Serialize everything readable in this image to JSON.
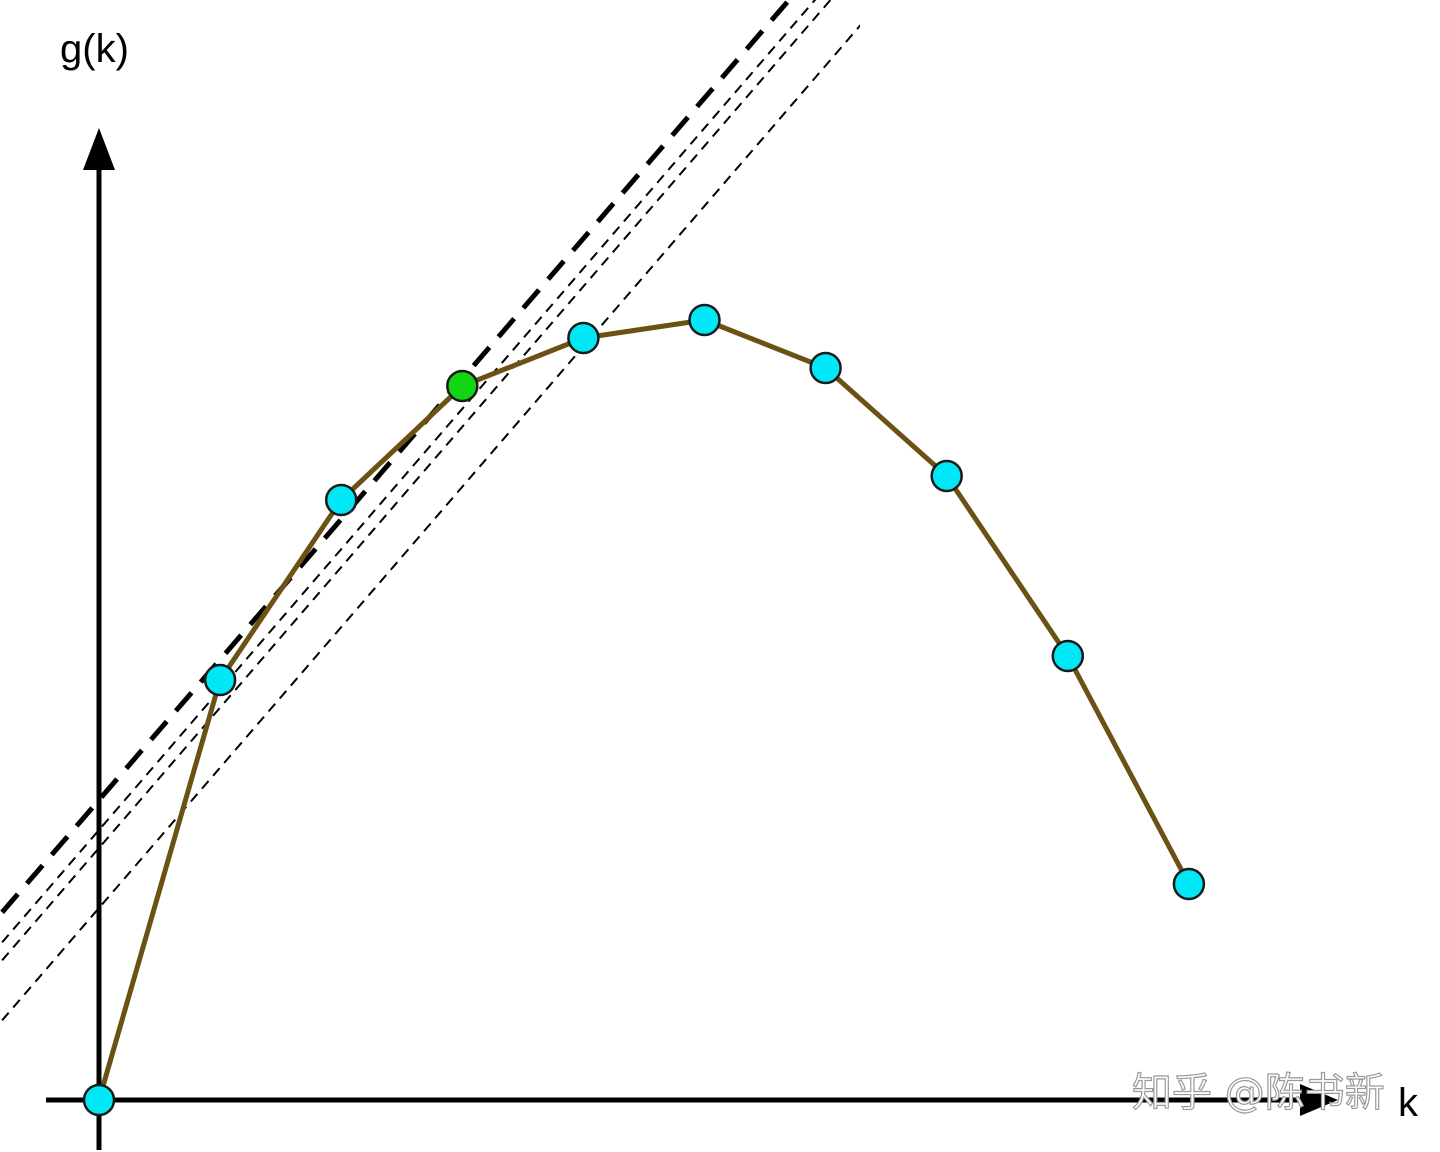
{
  "chart_data": {
    "type": "line",
    "xlabel": "k",
    "ylabel": "g(k)",
    "xlim": [
      -0.8,
      10.8
    ],
    "ylim": [
      -0.4,
      8.4
    ],
    "grid": false,
    "legend": "none",
    "series": [
      {
        "x": [
          0,
          1,
          2,
          3,
          4,
          5,
          6,
          7,
          8,
          9
        ],
        "values": [
          0,
          3.5,
          5.0,
          5.95,
          6.35,
          6.5,
          6.1,
          5.2,
          3.7,
          1.8
        ],
        "color": "#6b5214",
        "marker_color": "#00e8f5",
        "highlight_index": 3,
        "highlight_color": "#11d611"
      }
    ],
    "reference_lines": [
      {
        "slope": 1.17,
        "intercept": 2.5,
        "style": "dashed-thick",
        "color": "#000000"
      },
      {
        "slope": 1.17,
        "intercept": 2.25,
        "style": "dashed-thin",
        "color": "#000000"
      },
      {
        "slope": 1.17,
        "intercept": 2.1,
        "style": "dashed-thin",
        "color": "#000000"
      },
      {
        "slope": 1.17,
        "intercept": 1.6,
        "style": "dashed-thin",
        "color": "#000000"
      }
    ]
  },
  "watermark": "知乎 @陈书新"
}
